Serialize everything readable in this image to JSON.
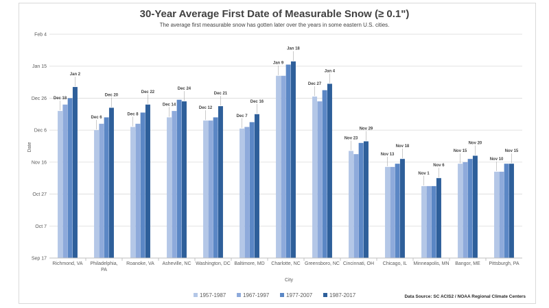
{
  "chart_data": {
    "type": "bar",
    "title": "30-Year Average First Date of Measurable Snow (≥ 0.1\")",
    "subtitle": "The average first measurable snow has gotten later over the years in some eastern U.S. cities.",
    "xlabel": "City",
    "ylabel": "Date",
    "source": "Data Source: SC ACIS2 / NOAA Regional Climate Centers",
    "y_ticks": [
      "Sep 17",
      "Oct 7",
      "Oct 27",
      "Nov 16",
      "Dec 6",
      "Dec 26",
      "Jan 15",
      "Feb 4"
    ],
    "ylim": [
      "Sep 17",
      "Feb 4"
    ],
    "grid": true,
    "legend_position": "bottom",
    "colors": [
      "#b4c7e7",
      "#8eaadb",
      "#5b87c5",
      "#2e5f9a"
    ],
    "categories": [
      "Richmond, VA",
      "Philadelphia, PA",
      "Roanoke, VA",
      "Asheville, NC",
      "Washington, DC",
      "Baltimore, MD",
      "Charlotte, NC",
      "Greensboro, NC",
      "Cincinnati, OH",
      "Chicago, IL",
      "Minneapolis, MN",
      "Bangor, ME",
      "Pittsburgh, PA"
    ],
    "series": [
      {
        "name": "1957-1987",
        "values": [
          "Dec 18",
          "Dec 6",
          "Dec 8",
          "Dec 14",
          "Dec 12",
          "Dec 7",
          "Jan 9",
          "Dec 27",
          "Nov 23",
          "Nov 13",
          "Nov 1",
          "Nov 15",
          "Nov 10"
        ]
      },
      {
        "name": "1967-1997",
        "values": [
          "Dec 22",
          "Dec 10",
          "Dec 10",
          "Dec 18",
          "Dec 12",
          "Dec 8",
          "Jan 9",
          "Dec 24",
          "Nov 21",
          "Nov 13",
          "Nov 1",
          "Nov 16",
          "Nov 10"
        ]
      },
      {
        "name": "1977-2007",
        "values": [
          "Dec 26",
          "Dec 14",
          "Dec 17",
          "Dec 25",
          "Dec 14",
          "Dec 11",
          "Jan 16",
          "Dec 31",
          "Nov 28",
          "Nov 15",
          "Nov 1",
          "Nov 18",
          "Nov 15"
        ]
      },
      {
        "name": "1987-2017",
        "values": [
          "Jan 2",
          "Dec 20",
          "Dec 22",
          "Dec 24",
          "Dec 21",
          "Dec 16",
          "Jan 18",
          "Jan 4",
          "Nov 29",
          "Nov 18",
          "Nov 6",
          "Nov 20",
          "Nov 15"
        ]
      }
    ],
    "data_labels": [
      {
        "category": "Richmond, VA",
        "series": "1957-1987",
        "text": "Dec 18"
      },
      {
        "category": "Richmond, VA",
        "series": "1987-2017",
        "text": "Jan 2"
      },
      {
        "category": "Philadelphia, PA",
        "series": "1957-1987",
        "text": "Dec 6"
      },
      {
        "category": "Philadelphia, PA",
        "series": "1987-2017",
        "text": "Dec 20"
      },
      {
        "category": "Roanoke, VA",
        "series": "1957-1987",
        "text": "Dec 8"
      },
      {
        "category": "Roanoke, VA",
        "series": "1987-2017",
        "text": "Dec 22"
      },
      {
        "category": "Asheville, NC",
        "series": "1957-1987",
        "text": "Dec 14"
      },
      {
        "category": "Asheville, NC",
        "series": "1987-2017",
        "text": "Dec 24"
      },
      {
        "category": "Washington, DC",
        "series": "1957-1987",
        "text": "Dec 12"
      },
      {
        "category": "Washington, DC",
        "series": "1987-2017",
        "text": "Dec 21"
      },
      {
        "category": "Baltimore, MD",
        "series": "1957-1987",
        "text": "Dec 7"
      },
      {
        "category": "Baltimore, MD",
        "series": "1987-2017",
        "text": "Dec 16"
      },
      {
        "category": "Charlotte, NC",
        "series": "1957-1987",
        "text": "Jan 9"
      },
      {
        "category": "Charlotte, NC",
        "series": "1987-2017",
        "text": "Jan 18"
      },
      {
        "category": "Greensboro, NC",
        "series": "1957-1987",
        "text": "Dec 27"
      },
      {
        "category": "Greensboro, NC",
        "series": "1987-2017",
        "text": "Jan 4"
      },
      {
        "category": "Cincinnati, OH",
        "series": "1957-1987",
        "text": "Nov 23"
      },
      {
        "category": "Cincinnati, OH",
        "series": "1987-2017",
        "text": "Nov 29"
      },
      {
        "category": "Chicago, IL",
        "series": "1957-1987",
        "text": "Nov 13"
      },
      {
        "category": "Chicago, IL",
        "series": "1987-2017",
        "text": "Nov 18"
      },
      {
        "category": "Minneapolis, MN",
        "series": "1957-1987",
        "text": "Nov 1"
      },
      {
        "category": "Minneapolis, MN",
        "series": "1987-2017",
        "text": "Nov 6"
      },
      {
        "category": "Bangor, ME",
        "series": "1957-1987",
        "text": "Nov 15"
      },
      {
        "category": "Bangor, ME",
        "series": "1987-2017",
        "text": "Nov 20"
      },
      {
        "category": "Pittsburgh, PA",
        "series": "1957-1987",
        "text": "Nov 10"
      },
      {
        "category": "Pittsburgh, PA",
        "series": "1987-2017",
        "text": "Nov 15"
      }
    ]
  }
}
